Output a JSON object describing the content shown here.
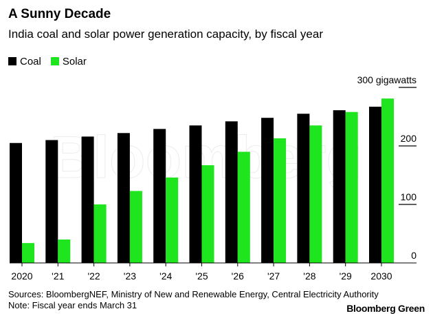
{
  "title": "A Sunny Decade",
  "subtitle": "India coal and solar power generation capacity, by fiscal year",
  "sources": "Sources: BloombergNEF, Ministry of New and Renewable Energy, Central Electricity Authority",
  "note": "Note: Fiscal year ends March 31",
  "brand": "Bloomberg Green",
  "watermark": "Bloomberg",
  "chart_data": {
    "type": "bar",
    "categories": [
      "2020",
      "'21",
      "'22",
      "'23",
      "'24",
      "'25",
      "'26",
      "'27",
      "'28",
      "'29",
      "2030"
    ],
    "series": [
      {
        "name": "Coal",
        "color": "#000000",
        "values": [
          205,
          210,
          216,
          222,
          229,
          235,
          242,
          248,
          255,
          261,
          267
        ]
      },
      {
        "name": "Solar",
        "color": "#1ee51e",
        "values": [
          34,
          40,
          100,
          123,
          146,
          167,
          190,
          213,
          235,
          258,
          281
        ]
      }
    ],
    "ylim": [
      0,
      300
    ],
    "yticks": [
      0,
      100,
      200,
      300
    ],
    "ytick_labels": [
      "0",
      "100",
      "200",
      "300 gigawatts"
    ],
    "legend": "top-left",
    "grid": false
  }
}
